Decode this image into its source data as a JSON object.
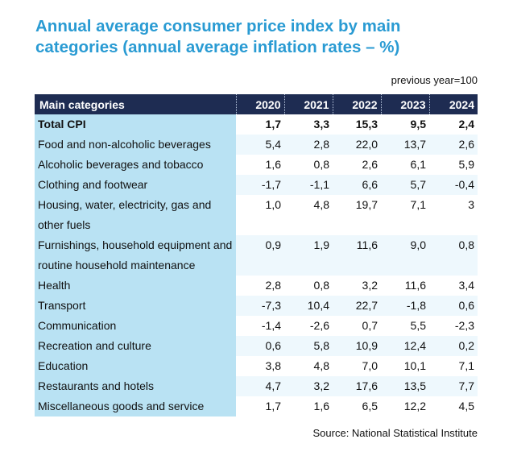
{
  "title": "Annual average consumer price index by main categories (annual average inflation rates – %)",
  "unit_note": "previous year=100",
  "table": {
    "header": "Main categories",
    "years": [
      "2020",
      "2021",
      "2022",
      "2023",
      "2024"
    ],
    "rows": [
      {
        "label": "Total CPI",
        "values": [
          "1,7",
          "3,3",
          "15,3",
          "9,5",
          "2,4"
        ]
      },
      {
        "label": "Food and non-alcoholic beverages",
        "values": [
          "5,4",
          "2,8",
          "22,0",
          "13,7",
          "2,6"
        ]
      },
      {
        "label": "Alcoholic beverages and tobacco",
        "values": [
          "1,6",
          "0,8",
          "2,6",
          "6,1",
          "5,9"
        ]
      },
      {
        "label": "Clothing and footwear",
        "values": [
          "-1,7",
          "-1,1",
          "6,6",
          "5,7",
          "-0,4"
        ]
      },
      {
        "label": "Housing, water, electricity, gas and other fuels",
        "values": [
          "1,0",
          "4,8",
          "19,7",
          "7,1",
          "3"
        ]
      },
      {
        "label": "Furnishings, household equipment and routine household maintenance",
        "values": [
          "0,9",
          "1,9",
          "11,6",
          "9,0",
          "0,8"
        ]
      },
      {
        "label": "Health",
        "values": [
          "2,8",
          "0,8",
          "3,2",
          "11,6",
          "3,4"
        ]
      },
      {
        "label": "Transport",
        "values": [
          "-7,3",
          "10,4",
          "22,7",
          "-1,8",
          "0,6"
        ]
      },
      {
        "label": "Communication",
        "values": [
          "-1,4",
          "-2,6",
          "0,7",
          "5,5",
          "-2,3"
        ]
      },
      {
        "label": "Recreation and culture",
        "values": [
          "0,6",
          "5,8",
          "10,9",
          "12,4",
          "0,2"
        ]
      },
      {
        "label": "Education",
        "values": [
          "3,8",
          "4,8",
          "7,0",
          "10,1",
          "7,1"
        ]
      },
      {
        "label": "Restaurants and hotels",
        "values": [
          "4,7",
          "3,2",
          "17,6",
          "13,5",
          "7,7"
        ]
      },
      {
        "label": "Miscellaneous goods and service",
        "values": [
          "1,7",
          "1,6",
          "6,5",
          "12,2",
          "4,5"
        ]
      }
    ]
  },
  "source": "Source: National Statistical Institute",
  "colors": {
    "title": "#2a9bd3",
    "header_bg": "#1e2c52",
    "category_bg": "#b9e2f3",
    "accent": "#2e8fd1"
  }
}
